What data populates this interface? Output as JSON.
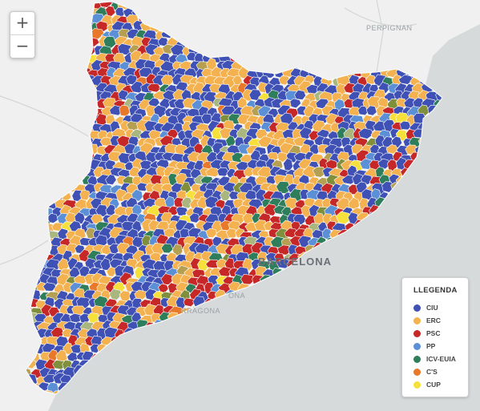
{
  "zoom": {
    "in_label": "+",
    "out_label": "−"
  },
  "places": {
    "perpignan": "PERPIGNAN",
    "barcelona": "BARCELONA",
    "cardona_fragment": "ONA",
    "tarragona_fragment": "RRAGONA"
  },
  "legend": {
    "title": "LLEGENDA",
    "items": [
      {
        "label": "CIU",
        "color": "#3f51b5"
      },
      {
        "label": "ERC",
        "color": "#f3b24f"
      },
      {
        "label": "PSC",
        "color": "#c62828"
      },
      {
        "label": "PP",
        "color": "#5b8fd6"
      },
      {
        "label": "ICV-EUIA",
        "color": "#2e7d5b"
      },
      {
        "label": "C'S",
        "color": "#e8792a"
      },
      {
        "label": "CUP",
        "color": "#f6e03a"
      }
    ]
  },
  "map": {
    "sea_color": "#d6dadb",
    "land_color": "#eff0ef",
    "border_color": "#ffffff",
    "extra_colors": [
      "#a9b77f",
      "#7f8f3c",
      "#b5a052"
    ]
  }
}
